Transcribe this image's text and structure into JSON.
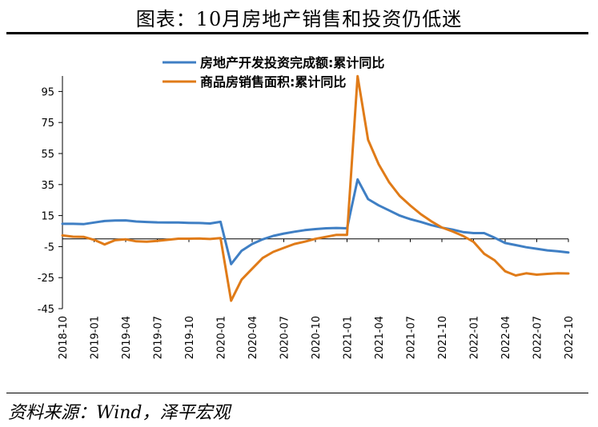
{
  "title": "图表：10月房地产销售和投资仍低迷",
  "source": "资料来源：Wind，泽平宏观",
  "chart_data": {
    "type": "line",
    "ylim": [
      -45,
      105
    ],
    "yticks": [
      95,
      75,
      55,
      35,
      15,
      -5,
      -25,
      -45
    ],
    "xticks": [
      "2018-10",
      "2019-01",
      "2019-04",
      "2019-07",
      "2019-10",
      "2020-01",
      "2020-04",
      "2020-07",
      "2020-10",
      "2021-01",
      "2021-04",
      "2021-07",
      "2021-10",
      "2022-01",
      "2022-04",
      "2022-07",
      "2022-10"
    ],
    "x": [
      "2018-10",
      "2018-11",
      "2018-12",
      "2019-01",
      "2019-02",
      "2019-03",
      "2019-04",
      "2019-05",
      "2019-06",
      "2019-07",
      "2019-08",
      "2019-09",
      "2019-10",
      "2019-11",
      "2019-12",
      "2020-01",
      "2020-02",
      "2020-03",
      "2020-04",
      "2020-05",
      "2020-06",
      "2020-07",
      "2020-08",
      "2020-09",
      "2020-10",
      "2020-11",
      "2020-12",
      "2021-01",
      "2021-02",
      "2021-03",
      "2021-04",
      "2021-05",
      "2021-06",
      "2021-07",
      "2021-08",
      "2021-09",
      "2021-10",
      "2021-11",
      "2021-12",
      "2022-01",
      "2022-02",
      "2022-03",
      "2022-04",
      "2022-05",
      "2022-06",
      "2022-07",
      "2022-08",
      "2022-09",
      "2022-10"
    ],
    "grid": false,
    "legend_position": "top-center",
    "series": [
      {
        "name": "房地产开发投资完成额:累计同比",
        "color": "#3f7fc4",
        "values": [
          9.7,
          9.7,
          9.5,
          10.5,
          11.5,
          11.8,
          11.9,
          11.2,
          10.9,
          10.6,
          10.5,
          10.5,
          10.3,
          10.2,
          9.9,
          11.0,
          -16.3,
          -7.7,
          -3.3,
          -0.3,
          1.9,
          3.4,
          4.6,
          5.6,
          6.3,
          6.8,
          7.0,
          6.8,
          38.3,
          25.6,
          21.6,
          18.3,
          15.0,
          12.7,
          10.9,
          8.8,
          7.2,
          6.0,
          4.4,
          3.7,
          3.7,
          0.7,
          -2.7,
          -4.0,
          -5.4,
          -6.4,
          -7.4,
          -8.0,
          -8.8
        ]
      },
      {
        "name": "商品房销售面积:累计同比",
        "color": "#e07b18",
        "values": [
          2.2,
          1.4,
          1.3,
          -0.6,
          -3.6,
          -0.9,
          -0.3,
          -1.6,
          -1.8,
          -1.3,
          -0.6,
          0.1,
          0.1,
          0.2,
          -0.1,
          0.5,
          -39.9,
          -26.3,
          -19.3,
          -12.3,
          -8.4,
          -5.8,
          -3.3,
          -1.8,
          0.0,
          1.3,
          2.6,
          2.6,
          104.9,
          63.8,
          48.1,
          36.4,
          27.7,
          21.5,
          15.9,
          11.3,
          7.3,
          4.8,
          1.9,
          -1.9,
          -9.6,
          -13.8,
          -20.9,
          -23.6,
          -22.2,
          -23.1,
          -22.6,
          -22.2,
          -22.3
        ]
      }
    ]
  }
}
